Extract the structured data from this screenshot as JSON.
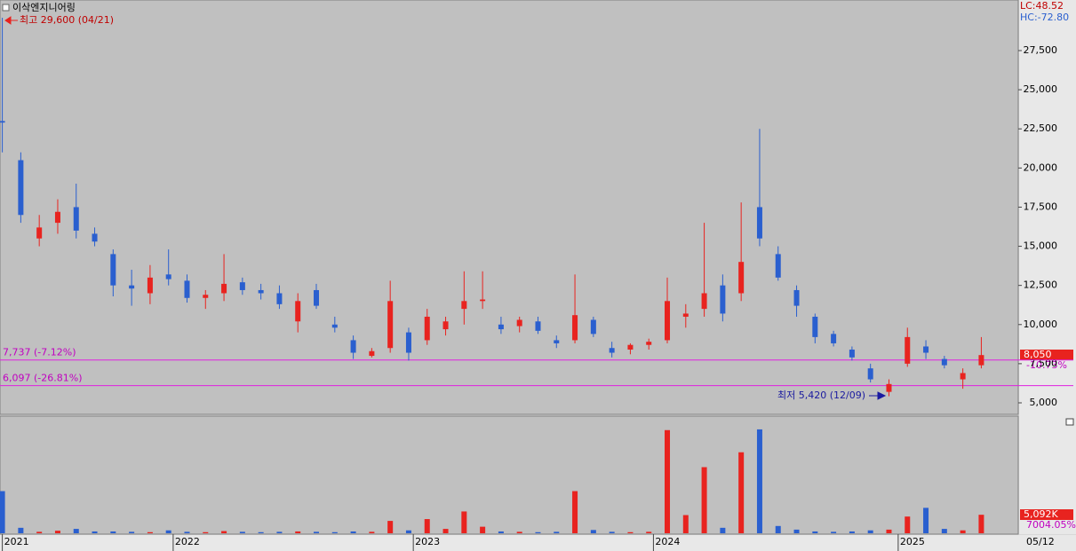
{
  "chart_data": {
    "type": "candlestick",
    "title": "이삭엔지니어링",
    "x": [
      0,
      4,
      8,
      12,
      16,
      20,
      24,
      28,
      32,
      36,
      40,
      44,
      48,
      52,
      56,
      60,
      64,
      68,
      72,
      76,
      80,
      84,
      88,
      92,
      96,
      100,
      104,
      108,
      112,
      116,
      120,
      124,
      128,
      132,
      136,
      140,
      144,
      148,
      152,
      156,
      160,
      164,
      168,
      172,
      176,
      180,
      184,
      188,
      192,
      196,
      200,
      204,
      208,
      212
    ],
    "open": [
      23000,
      20500,
      15500,
      16500,
      17500,
      15800,
      14500,
      12500,
      12000,
      13200,
      12800,
      11700,
      12000,
      12700,
      12200,
      12000,
      10200,
      12200,
      10000,
      9000,
      8000,
      8500,
      9500,
      9000,
      9700,
      11000,
      11500,
      10000,
      9900,
      10200,
      9000,
      9000,
      10300,
      8500,
      8400,
      8700,
      9000,
      10500,
      11000,
      12500,
      12000,
      17500,
      14500,
      12200,
      10500,
      9400,
      8400,
      7200,
      5700,
      7500,
      8600,
      7800,
      6500,
      7400
    ],
    "high": [
      29600,
      21000,
      17000,
      18000,
      19000,
      16200,
      14800,
      13500,
      13800,
      14800,
      13200,
      12200,
      14500,
      13000,
      12600,
      12500,
      12000,
      12600,
      10500,
      9300,
      8500,
      12800,
      9800,
      11000,
      10500,
      13400,
      13400,
      10500,
      10500,
      10500,
      9300,
      13200,
      10500,
      8900,
      8800,
      9100,
      13000,
      11300,
      16500,
      13200,
      17800,
      22500,
      15000,
      12500,
      10700,
      9600,
      8600,
      7500,
      6500,
      9800,
      9000,
      8000,
      7200,
      9200
    ],
    "low": [
      21000,
      16500,
      15000,
      15800,
      15500,
      15000,
      11800,
      11200,
      11300,
      12500,
      11400,
      11000,
      11500,
      11900,
      11600,
      11000,
      9500,
      11000,
      9500,
      7800,
      7900,
      8200,
      7700,
      8700,
      9300,
      10000,
      11000,
      9400,
      9500,
      9400,
      8500,
      8800,
      9200,
      7900,
      8100,
      8400,
      8800,
      9800,
      10500,
      10200,
      11500,
      15000,
      12800,
      10500,
      8800,
      8600,
      7700,
      6300,
      5420,
      7300,
      7800,
      7200,
      5900,
      7200
    ],
    "close": [
      22900,
      17000,
      16200,
      17200,
      16000,
      15300,
      12500,
      12300,
      13000,
      12900,
      11700,
      11900,
      12600,
      12200,
      12000,
      11300,
      11500,
      11200,
      9800,
      8200,
      8300,
      11500,
      8200,
      10500,
      10200,
      11500,
      11600,
      9700,
      10300,
      9600,
      8800,
      10600,
      9400,
      8200,
      8700,
      8900,
      11500,
      10700,
      12000,
      10700,
      14000,
      15500,
      13000,
      11200,
      9200,
      8800,
      7900,
      6500,
      6200,
      9200,
      8200,
      7400,
      6900,
      8050
    ],
    "volume": [
      11600,
      1500,
      400,
      700,
      1200,
      500,
      500,
      400,
      300,
      800,
      400,
      300,
      600,
      400,
      300,
      400,
      500,
      400,
      300,
      500,
      400,
      3400,
      800,
      3900,
      1200,
      6000,
      1800,
      500,
      400,
      300,
      400,
      11600,
      900,
      400,
      300,
      400,
      28400,
      5000,
      18200,
      1500,
      22300,
      28600,
      2000,
      1000,
      500,
      400,
      500,
      800,
      1000,
      4600,
      7000,
      1200,
      800,
      5092
    ],
    "up_color": "#e8231f",
    "down_color": "#2a5fcf",
    "xlim": [
      -0.5,
      220
    ],
    "ylim": [
      4263,
      30731
    ],
    "vlim": [
      0,
      32250
    ],
    "xticks": [
      {
        "value": 0,
        "label": "2021"
      },
      {
        "value": 37,
        "label": "2022"
      },
      {
        "value": 89,
        "label": "2023"
      },
      {
        "value": 141,
        "label": "2024"
      },
      {
        "value": 194,
        "label": "2025"
      }
    ],
    "yticks": [
      {
        "value": 5000,
        "label": "5,000"
      },
      {
        "value": 7500,
        "label": "7,500"
      },
      {
        "value": 10000,
        "label": "10,000"
      },
      {
        "value": 12500,
        "label": "12,500"
      },
      {
        "value": 15000,
        "label": "15,000"
      },
      {
        "value": 17500,
        "label": "17,500"
      },
      {
        "value": 20000,
        "label": "20,000"
      },
      {
        "value": 22500,
        "label": "22,500"
      },
      {
        "value": 25000,
        "label": "25,000"
      },
      {
        "value": 27500,
        "label": "27,500"
      }
    ],
    "hlines": [
      {
        "value": 7737,
        "label": "7,737 (-7.12%)"
      },
      {
        "value": 6097,
        "label": "6,097 (-26.81%)"
      }
    ],
    "high_note": "최고 29,600 (04/21)",
    "low_note": "최저 5,420 (12/09)",
    "lc_label": "LC:48.52",
    "hc_label": "HC:-72.80",
    "last_price_label": "8,050",
    "last_change_label": "-10.73%",
    "last_volume_label": "5,092K",
    "volume_change_label": "7004.05%",
    "last_date_label": "05/12"
  }
}
